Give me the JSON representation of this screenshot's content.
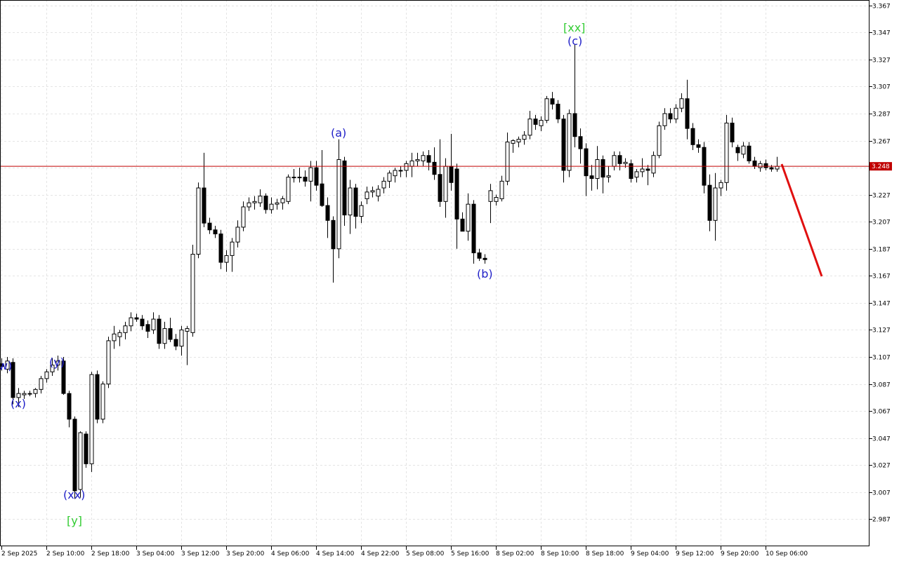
{
  "chart_data": {
    "type": "candlestick",
    "categories": [
      "2 Sep 2025",
      null,
      null,
      null,
      null,
      null,
      null,
      null,
      "2 Sep 10:00",
      null,
      null,
      null,
      null,
      null,
      null,
      null,
      "2 Sep 18:00",
      null,
      null,
      null,
      null,
      null,
      null,
      null,
      "3 Sep 04:00",
      null,
      null,
      null,
      null,
      null,
      null,
      null,
      "3 Sep 12:00",
      null,
      null,
      null,
      null,
      null,
      null,
      null,
      "3 Sep 20:00",
      null,
      null,
      null,
      null,
      null,
      null,
      null,
      "4 Sep 06:00",
      null,
      null,
      null,
      null,
      null,
      null,
      null,
      "4 Sep 14:00",
      null,
      null,
      null,
      null,
      null,
      null,
      null,
      "4 Sep 22:00",
      null,
      null,
      null,
      null,
      null,
      null,
      null,
      "5 Sep 08:00",
      null,
      null,
      null,
      null,
      null,
      null,
      null,
      "5 Sep 16:00",
      null,
      null,
      null,
      null,
      null,
      null,
      null,
      "8 Sep 02:00",
      null,
      null,
      null,
      null,
      null,
      null,
      null,
      "8 Sep 10:00",
      null,
      null,
      null,
      null,
      null,
      null,
      null,
      "8 Sep 18:00",
      null,
      null,
      null,
      null,
      null,
      null,
      null,
      "9 Sep 04:00",
      null,
      null,
      null,
      null,
      null,
      null,
      null,
      "9 Sep 12:00",
      null,
      null,
      null,
      null,
      null,
      null,
      null,
      "9 Sep 20:00",
      null,
      null,
      null,
      null,
      null,
      null,
      null,
      "10 Sep 06:00",
      null,
      null
    ],
    "open": [
      3.102,
      3.098,
      3.103,
      3.077,
      3.079,
      3.08,
      3.08,
      3.083,
      3.091,
      3.096,
      3.101,
      3.104,
      3.08,
      3.061,
      3.009,
      3.05,
      3.028,
      3.094,
      3.061,
      3.087,
      3.119,
      3.122,
      3.125,
      3.13,
      3.136,
      3.135,
      3.131,
      3.127,
      3.135,
      3.117,
      3.128,
      3.12,
      3.115,
      3.126,
      3.125,
      3.183,
      3.232,
      3.206,
      3.201,
      3.198,
      3.177,
      3.182,
      3.192,
      3.203,
      3.218,
      3.221,
      3.221,
      3.226,
      3.216,
      3.22,
      3.221,
      3.222,
      3.24,
      3.24,
      3.24,
      3.237,
      3.247,
      3.235,
      3.219,
      3.208,
      3.187,
      3.252,
      3.212,
      3.232,
      3.211,
      3.224,
      3.229,
      3.226,
      3.232,
      3.237,
      3.241,
      3.245,
      3.245,
      3.248,
      3.252,
      3.252,
      3.256,
      3.251,
      3.242,
      3.222,
      3.248,
      3.246,
      3.209,
      3.2,
      3.22,
      3.184,
      3.18,
      3.222,
      3.222,
      3.224,
      3.237,
      3.265,
      3.266,
      3.268,
      3.271,
      3.283,
      3.278,
      3.282,
      3.298,
      3.294,
      3.283,
      3.245,
      3.287,
      3.27,
      3.261,
      3.241,
      3.239,
      3.253,
      3.24,
      3.248,
      3.256,
      3.25,
      3.25,
      3.24,
      3.244,
      3.246,
      3.243,
      3.256,
      3.278,
      3.287,
      3.283,
      3.291,
      3.298,
      3.276,
      3.264,
      3.262,
      3.234,
      3.208,
      3.232,
      3.236,
      3.28,
      3.262,
      3.257,
      3.263,
      3.252,
      3.247,
      3.25,
      3.247,
      3.246
    ],
    "high": [
      3.106,
      3.107,
      3.106,
      3.084,
      3.082,
      3.082,
      3.084,
      3.093,
      3.098,
      3.106,
      3.108,
      3.107,
      3.082,
      3.063,
      3.052,
      3.052,
      3.096,
      3.097,
      3.089,
      3.122,
      3.13,
      3.127,
      3.133,
      3.14,
      3.139,
      3.138,
      3.134,
      3.14,
      3.138,
      3.133,
      3.136,
      3.124,
      3.13,
      3.13,
      3.19,
      3.236,
      3.258,
      3.21,
      3.204,
      3.201,
      3.186,
      3.195,
      3.208,
      3.222,
      3.225,
      3.226,
      3.231,
      3.228,
      3.225,
      3.224,
      3.226,
      3.242,
      3.246,
      3.247,
      3.245,
      3.252,
      3.252,
      3.26,
      3.225,
      3.211,
      3.268,
      3.255,
      3.238,
      3.235,
      3.222,
      3.233,
      3.233,
      3.234,
      3.24,
      3.245,
      3.247,
      3.248,
      3.252,
      3.258,
      3.258,
      3.259,
      3.26,
      3.262,
      3.268,
      3.254,
      3.272,
      3.25,
      3.214,
      3.228,
      3.223,
      3.187,
      3.183,
      3.235,
      3.227,
      3.241,
      3.273,
      3.268,
      3.27,
      3.274,
      3.289,
      3.286,
      3.285,
      3.3,
      3.303,
      3.297,
      3.286,
      3.29,
      3.338,
      3.276,
      3.265,
      3.249,
      3.263,
      3.256,
      3.248,
      3.259,
      3.259,
      3.254,
      3.253,
      3.246,
      3.254,
      3.249,
      3.259,
      3.281,
      3.291,
      3.291,
      3.294,
      3.302,
      3.312,
      3.28,
      3.268,
      3.266,
      3.242,
      3.243,
      3.238,
      3.286,
      3.284,
      3.264,
      3.266,
      3.266,
      3.255,
      3.252,
      3.253,
      3.249,
      3.255
    ],
    "low": [
      3.097,
      3.095,
      3.072,
      3.07,
      3.076,
      3.078,
      3.077,
      3.08,
      3.088,
      3.093,
      3.097,
      3.079,
      3.055,
      3.002,
      3.003,
      3.025,
      3.022,
      3.058,
      3.058,
      3.084,
      3.113,
      3.115,
      3.12,
      3.126,
      3.133,
      3.127,
      3.121,
      3.124,
      3.113,
      3.113,
      3.118,
      3.112,
      3.108,
      3.101,
      3.122,
      3.18,
      3.203,
      3.198,
      3.195,
      3.172,
      3.17,
      3.17,
      3.188,
      3.2,
      3.215,
      3.216,
      3.218,
      3.213,
      3.213,
      3.216,
      3.216,
      3.22,
      3.236,
      3.236,
      3.233,
      3.222,
      3.23,
      3.218,
      3.195,
      3.162,
      3.18,
      3.204,
      3.198,
      3.202,
      3.206,
      3.22,
      3.225,
      3.222,
      3.228,
      3.232,
      3.236,
      3.24,
      3.24,
      3.24,
      3.248,
      3.248,
      3.245,
      3.238,
      3.218,
      3.21,
      3.23,
      3.187,
      3.2,
      3.193,
      3.176,
      3.178,
      3.176,
      3.206,
      3.219,
      3.222,
      3.234,
      3.258,
      3.262,
      3.264,
      3.268,
      3.275,
      3.274,
      3.28,
      3.29,
      3.28,
      3.236,
      3.24,
      3.262,
      3.25,
      3.226,
      3.23,
      3.231,
      3.228,
      3.236,
      3.245,
      3.245,
      3.247,
      3.236,
      3.236,
      3.24,
      3.234,
      3.24,
      3.254,
      3.275,
      3.28,
      3.28,
      3.288,
      3.268,
      3.26,
      3.258,
      3.228,
      3.2,
      3.193,
      3.226,
      3.23,
      3.262,
      3.252,
      3.254,
      3.25,
      3.246,
      3.244,
      3.245,
      3.244,
      3.244
    ],
    "close": [
      3.1,
      3.104,
      3.077,
      3.08,
      3.08,
      3.08,
      3.083,
      3.091,
      3.096,
      3.101,
      3.104,
      3.08,
      3.061,
      3.008,
      3.051,
      3.028,
      3.094,
      3.061,
      3.087,
      3.119,
      3.124,
      3.125,
      3.13,
      3.136,
      3.135,
      3.13,
      3.126,
      3.135,
      3.117,
      3.128,
      3.12,
      3.115,
      3.127,
      3.128,
      3.183,
      3.232,
      3.206,
      3.201,
      3.198,
      3.177,
      3.182,
      3.192,
      3.203,
      3.218,
      3.221,
      3.222,
      3.226,
      3.216,
      3.22,
      3.221,
      3.224,
      3.24,
      3.24,
      3.24,
      3.237,
      3.247,
      3.234,
      3.219,
      3.208,
      3.187,
      3.253,
      3.212,
      3.232,
      3.211,
      3.219,
      3.229,
      3.23,
      3.231,
      3.237,
      3.243,
      3.245,
      3.245,
      3.25,
      3.252,
      3.253,
      3.256,
      3.251,
      3.242,
      3.222,
      3.248,
      3.236,
      3.209,
      3.2,
      3.22,
      3.184,
      3.18,
      3.179,
      3.23,
      3.225,
      3.237,
      3.266,
      3.267,
      3.268,
      3.271,
      3.283,
      3.279,
      3.282,
      3.298,
      3.294,
      3.283,
      3.245,
      3.287,
      3.27,
      3.261,
      3.241,
      3.239,
      3.253,
      3.24,
      3.241,
      3.256,
      3.25,
      3.251,
      3.239,
      3.244,
      3.246,
      3.245,
      3.256,
      3.278,
      3.287,
      3.283,
      3.291,
      3.298,
      3.276,
      3.264,
      3.262,
      3.234,
      3.208,
      3.232,
      3.236,
      3.28,
      3.266,
      3.258,
      3.263,
      3.252,
      3.248,
      3.25,
      3.247,
      3.246,
      3.248
    ],
    "ylim": [
      2.967,
      3.371
    ],
    "yticks": [
      2.987,
      3.007,
      3.027,
      3.047,
      3.067,
      3.087,
      3.107,
      3.127,
      3.147,
      3.167,
      3.187,
      3.207,
      3.227,
      3.247,
      3.267,
      3.287,
      3.307,
      3.327,
      3.347,
      3.367
    ],
    "grid": true,
    "current_price": 3.248,
    "current_price_color": "#c00000",
    "annotations": [
      {
        "text": "w)",
        "color": "#2020c8"
      },
      {
        "text": "(x)",
        "color": "#2020c8"
      },
      {
        "text": "(y)",
        "color": "#2020c8"
      },
      {
        "text": "(xx)",
        "color": "#2020c8"
      },
      {
        "text": "[y]",
        "color": "#33cc33"
      },
      {
        "text": "(a)",
        "color": "#2020c8"
      },
      {
        "text": "(b)",
        "color": "#2020c8"
      },
      {
        "text": "[xx]",
        "color": "#33cc33"
      },
      {
        "text": "(c)",
        "color": "#2020c8"
      }
    ]
  }
}
